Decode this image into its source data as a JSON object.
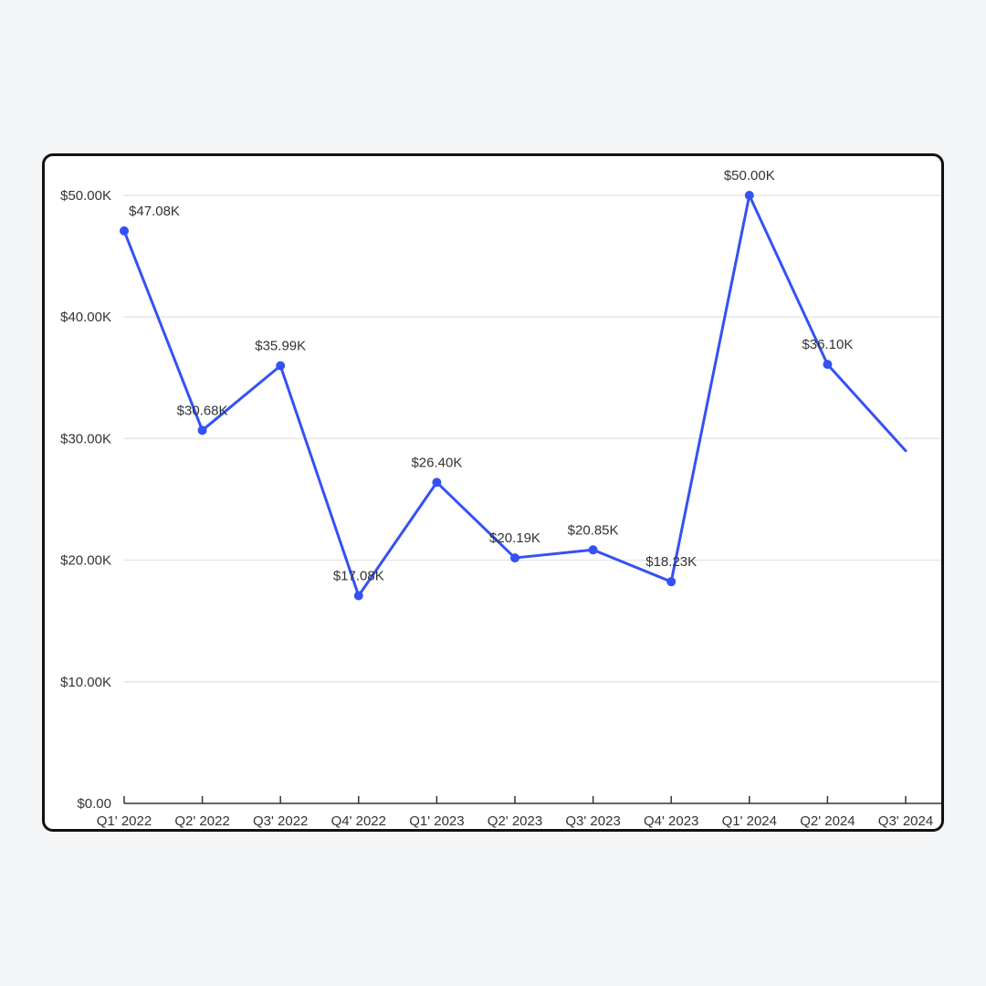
{
  "chart_data": {
    "type": "line",
    "title": "",
    "xlabel": "",
    "ylabel": "",
    "categories": [
      "Q1' 2022",
      "Q2' 2022",
      "Q3' 2022",
      "Q4' 2022",
      "Q1' 2023",
      "Q2' 2023",
      "Q3' 2023",
      "Q4' 2023",
      "Q1' 2024",
      "Q2' 2024",
      "Q3' 2024"
    ],
    "series": [
      {
        "values": [
          47080,
          30680,
          35990,
          17080,
          26400,
          20190,
          20850,
          18230,
          50000,
          36100,
          29000
        ],
        "data_labels": [
          "$47.08K",
          "$30.68K",
          "$35.99K",
          "$17.08K",
          "$26.40K",
          "$20.19K",
          "$20.85K",
          "$18.23K",
          "$50.00K",
          "$36.10K",
          ""
        ]
      }
    ],
    "ylim": [
      0,
      50000
    ],
    "yticks": [
      0,
      10000,
      20000,
      30000,
      40000,
      50000
    ],
    "ytick_labels": [
      "$0.00",
      "$10.00K",
      "$20.00K",
      "$30.00K",
      "$40.00K",
      "$50.00K"
    ],
    "grid": true,
    "legend": "none",
    "colors": {
      "line": "#3551f3",
      "grid": "#e6e6e6",
      "axis": "#333333",
      "text": "#333333"
    }
  }
}
